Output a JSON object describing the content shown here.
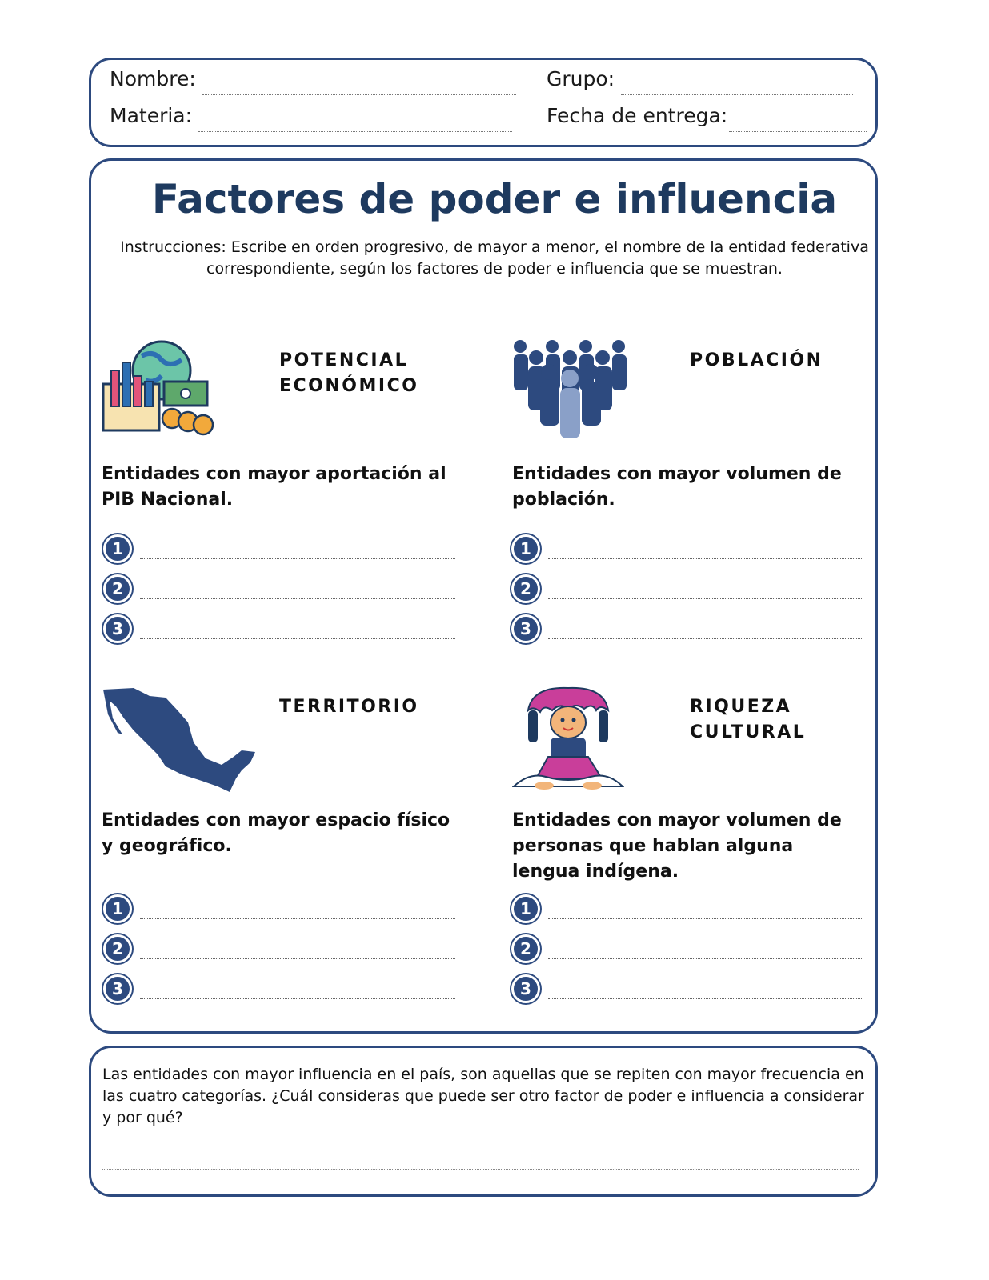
{
  "header": {
    "fields": [
      {
        "label": "Nombre:"
      },
      {
        "label": "Grupo:"
      },
      {
        "label": "Materia:"
      },
      {
        "label": "Fecha de entrega:"
      }
    ]
  },
  "main": {
    "title": "Factores de poder e influencia",
    "instructions": "Instrucciones: Escribe en orden progresivo, de mayor a menor, el nombre de la entidad federativa correspondiente, según los factores de poder e influencia que se muestran.",
    "sections": [
      {
        "heading": "POTENCIAL ECONÓMICO",
        "description": "Entidades con mayor aportación al PIB Nacional.",
        "ranks": [
          1,
          2,
          3
        ]
      },
      {
        "heading": "POBLACIÓN",
        "description": "Entidades con mayor volumen de población.",
        "ranks": [
          1,
          2,
          3
        ]
      },
      {
        "heading": "TERRITORIO",
        "description": "Entidades con mayor espacio físico y geográfico.",
        "ranks": [
          1,
          2,
          3
        ]
      },
      {
        "heading": "RIQUEZA CULTURAL",
        "description": "Entidades con mayor volumen de personas que hablan alguna lengua indígena.",
        "ranks": [
          1,
          2,
          3
        ]
      }
    ]
  },
  "footer": {
    "question": "Las entidades con mayor influencia en el país, son aquellas que se repiten con mayor frecuencia en las cuatro categorías. ¿Cuál consideras que puede ser otro factor de poder e influencia a considerar y por qué?"
  }
}
